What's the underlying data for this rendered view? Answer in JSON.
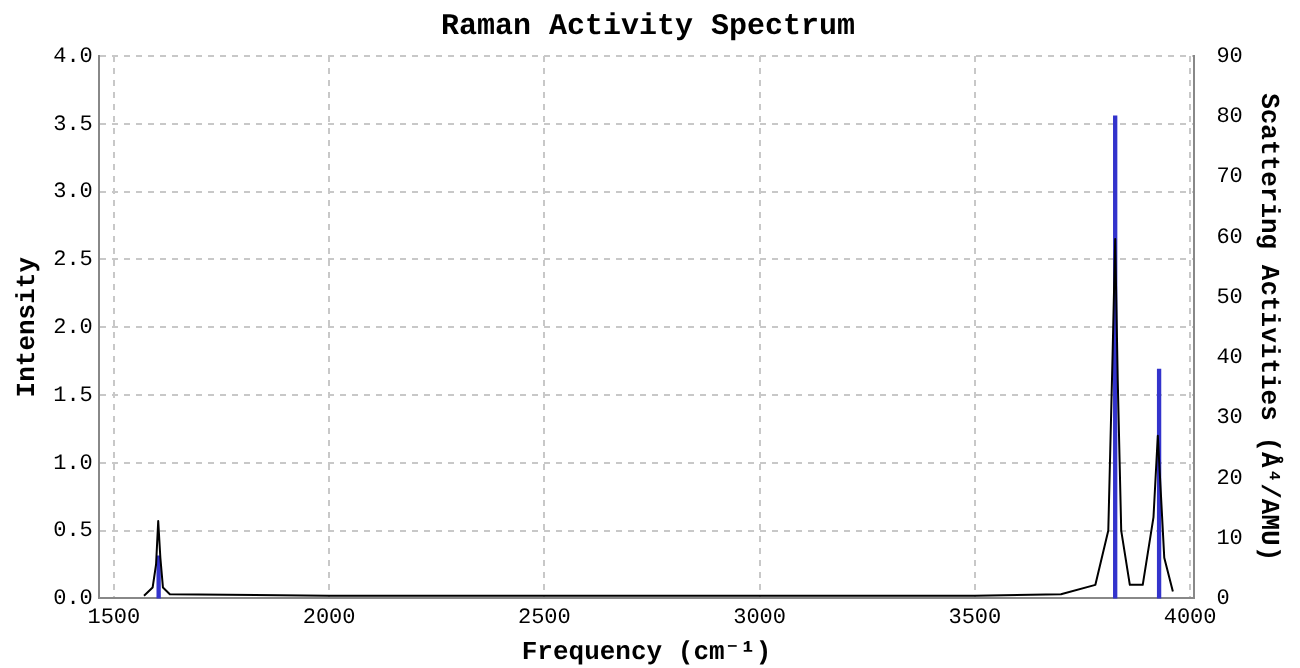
{
  "chart_data": {
    "type": "line",
    "title": "Raman Activity Spectrum",
    "xlabel": "Frequency (cm⁻¹)",
    "ylabel": "Intensity",
    "y2label": "Scattering Activities (Å⁴/AMU)",
    "xlim": [
      1465,
      4010
    ],
    "xticks": [
      1500,
      2000,
      2500,
      3000,
      3500,
      4000
    ],
    "ylim": [
      0,
      4
    ],
    "yticks": [
      {
        "value": 0,
        "label": "0.0"
      },
      {
        "value": 0.5,
        "label": "0.5"
      },
      {
        "value": 1,
        "label": "1.0"
      },
      {
        "value": 1.5,
        "label": "1.5"
      },
      {
        "value": 2,
        "label": "2.0"
      },
      {
        "value": 2.5,
        "label": "2.5"
      },
      {
        "value": 3,
        "label": "3.0"
      },
      {
        "value": 3.5,
        "label": "3.5"
      },
      {
        "value": 4,
        "label": "4.0"
      }
    ],
    "y2lim": [
      0,
      90
    ],
    "y2ticks": [
      0,
      10,
      20,
      30,
      40,
      50,
      60,
      70,
      80,
      90
    ],
    "grid": true,
    "legend": false,
    "marker": "none",
    "line_style": "solid",
    "series": [
      {
        "color": "#000000",
        "x": [
          1570,
          1590,
          1598,
          1603,
          1608,
          1614,
          1630,
          2000,
          2500,
          3000,
          3500,
          3700,
          3780,
          3810,
          3820,
          3826,
          3832,
          3840,
          3860,
          3890,
          3915,
          3925,
          3930,
          3940,
          3960
        ],
        "values": [
          0.02,
          0.08,
          0.25,
          0.57,
          0.3,
          0.08,
          0.03,
          0.02,
          0.02,
          0.02,
          0.02,
          0.03,
          0.1,
          0.5,
          1.8,
          2.65,
          1.6,
          0.5,
          0.1,
          0.1,
          0.6,
          1.2,
          0.9,
          0.3,
          0.05
        ]
      },
      {
        "type": "bar",
        "axis": "y2",
        "color": "#3333cc",
        "x": [
          1604,
          3826,
          3928
        ],
        "values": [
          7,
          80,
          38
        ]
      }
    ]
  }
}
